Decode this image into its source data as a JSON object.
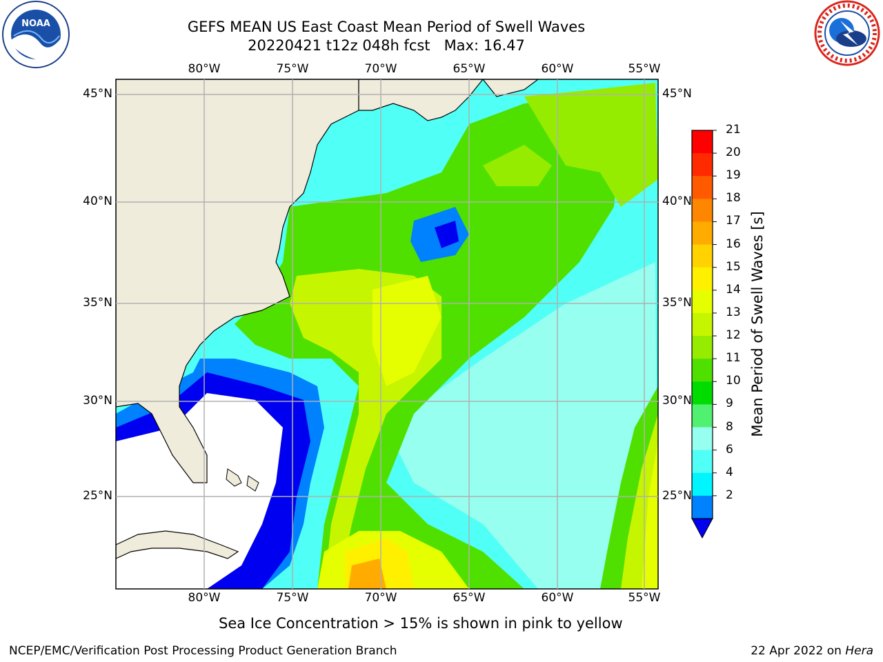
{
  "title": {
    "line1": "GEFS MEAN US East Coast Mean Period of Swell Waves",
    "line2": "20220421 t12z 048h fcst   Max: 16.47"
  },
  "map": {
    "longitudes": [
      "80°W",
      "75°W",
      "70°W",
      "65°W",
      "60°W",
      "55°W"
    ],
    "latitudes": [
      "45°N",
      "40°N",
      "35°N",
      "30°N",
      "25°N"
    ],
    "land_color": "#efecdc",
    "ocean_no_data_color": "#ffffff",
    "grid_color": "#b0b0b0"
  },
  "colorbar": {
    "label": "Mean Period of Swell Waves [s]",
    "ticks": [
      "21",
      "20",
      "19",
      "18",
      "17",
      "16",
      "15",
      "14",
      "13",
      "12",
      "11",
      "10",
      "9",
      "8",
      "6",
      "4",
      "2"
    ],
    "colors": [
      "#ff0000",
      "#ff2a00",
      "#ff5a00",
      "#ff8600",
      "#ffab00",
      "#ffd200",
      "#fff000",
      "#e6ff00",
      "#c6f500",
      "#96ec00",
      "#50e000",
      "#00dc00",
      "#50f070",
      "#96fff0",
      "#50fff5",
      "#00f5ff",
      "#0082ff",
      "#0000f0"
    ]
  },
  "footnote": "Sea Ice Concentration > 15% is shown in pink to yellow",
  "credit": "NCEP/EMC/Verification Post Processing Product Generation Branch",
  "date_stamp": {
    "date": "22 Apr 2022 on",
    "host": "Hera"
  },
  "logos": {
    "left": {
      "name": "NOAA",
      "text": "NOAA"
    },
    "right": {
      "name": "National Weather Service"
    }
  }
}
